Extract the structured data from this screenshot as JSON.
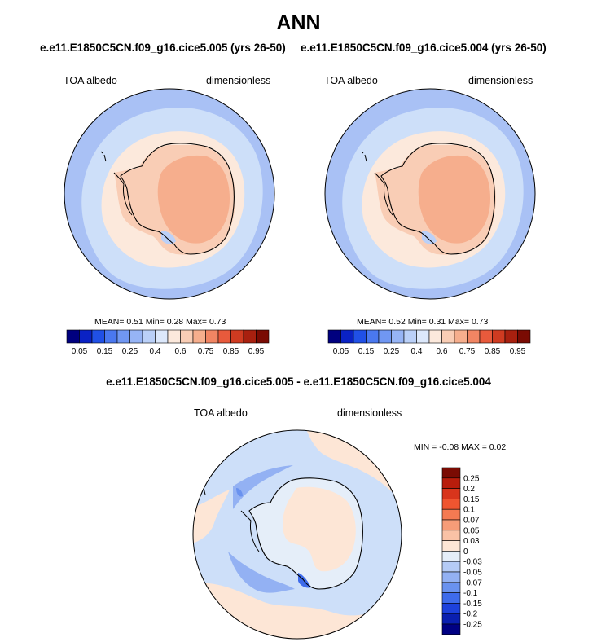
{
  "title": "ANN",
  "panels": [
    {
      "case_title": "e.e11.E1850C5CN.f09_g16.cice5.005 (yrs 26-50)",
      "variable": "TOA albedo",
      "units": "dimensionless",
      "stats": {
        "mean": "0.51",
        "min": "0.28",
        "max": "0.73"
      },
      "stats_text": "MEAN=   0.51  Min=   0.28  Max=   0.73"
    },
    {
      "case_title": "e.e11.E1850C5CN.f09_g16.cice5.004 (yrs 26-50)",
      "variable": "TOA albedo",
      "units": "dimensionless",
      "stats": {
        "mean": "0.52",
        "min": "0.31",
        "max": "0.73"
      },
      "stats_text": "MEAN=   0.52  Min=   0.31  Max=   0.73"
    }
  ],
  "top_colorbar": {
    "labels": [
      "0.05",
      "0.15",
      "0.25",
      "0.4",
      "0.6",
      "0.75",
      "0.85",
      "0.95"
    ],
    "colors": [
      "#00007f",
      "#0a22c4",
      "#2050e6",
      "#4a78ef",
      "#7097f2",
      "#96b4f5",
      "#bad0f8",
      "#dce8fb",
      "#fce9dc",
      "#f9cdb5",
      "#f6ae8d",
      "#f18563",
      "#e85a3c",
      "#cf3b21",
      "#a8200f",
      "#7a0b03"
    ]
  },
  "diff": {
    "title": "e.e11.E1850C5CN.f09_g16.cice5.005 - e.e11.E1850C5CN.f09_g16.cice5.004",
    "variable": "TOA albedo",
    "units": "dimensionless",
    "min": "-0.08",
    "max": "0.02",
    "minmax_text": "MIN =  -0.08 MAX =   0.02",
    "colorbar": {
      "labels": [
        "0.25",
        "0.2",
        "0.15",
        "0.1",
        "0.07",
        "0.05",
        "0.03",
        "0",
        "-0.03",
        "-0.05",
        "-0.07",
        "-0.1",
        "-0.15",
        "-0.2",
        "-0.25"
      ],
      "colors": [
        "#7a0b03",
        "#b81d0c",
        "#d8351c",
        "#ef5530",
        "#f57a52",
        "#f79c78",
        "#f9c2a6",
        "#fde6d6",
        "#e5eef9",
        "#b5cbf6",
        "#93b1f3",
        "#6a92ef",
        "#3e6beb",
        "#1d41dc",
        "#0a1fb0",
        "#000083"
      ]
    }
  },
  "map_colors": {
    "outer_blue": "#a9c1f5",
    "light_blue": "#cddff9",
    "pale": "#fce9dc",
    "peach": "#f9cdb5",
    "salmon": "#f6ae8d",
    "diff_base": "#cddff9",
    "diff_pos": "#fde6d6",
    "diff_neg": "#93b1f3",
    "diff_neg_strong": "#3e6beb"
  }
}
